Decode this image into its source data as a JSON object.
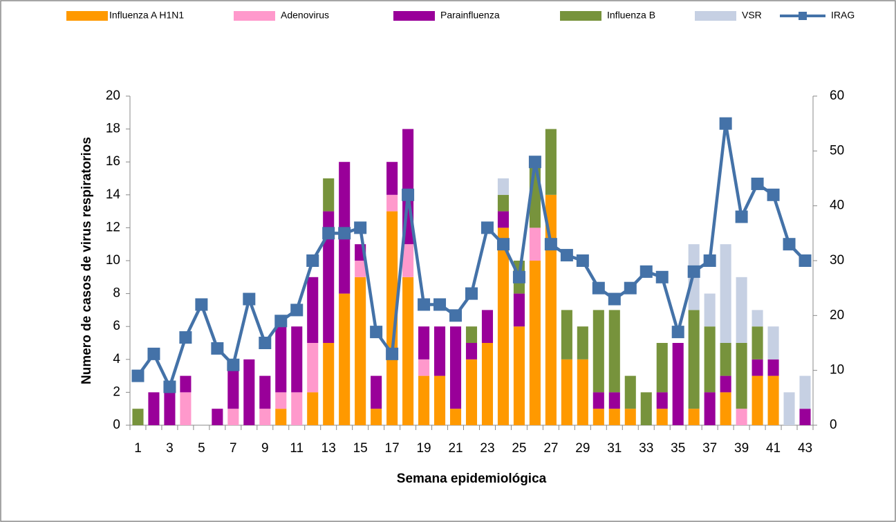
{
  "chart_data": {
    "type": "bar",
    "stacked": true,
    "x_label": "Semana epidemiológica",
    "y_label": "Numero de casos de virus respiratorios",
    "categories": [
      1,
      null,
      3,
      null,
      5,
      null,
      7,
      null,
      9,
      null,
      11,
      null,
      13,
      null,
      15,
      null,
      17,
      null,
      19,
      null,
      21,
      null,
      23,
      null,
      25,
      null,
      27,
      null,
      29,
      null,
      31,
      null,
      33,
      null,
      35,
      null,
      37,
      null,
      39,
      null,
      41,
      null,
      43
    ],
    "ylim": [
      0,
      20
    ],
    "yticks": [
      0,
      2,
      4,
      6,
      8,
      10,
      12,
      14,
      16,
      18,
      20
    ],
    "y2lim": [
      0,
      60
    ],
    "y2ticks": [
      0,
      10,
      20,
      30,
      40,
      50,
      60
    ],
    "legend": "top",
    "series": [
      {
        "name": "Influenza A H1N1",
        "color": "#ff9900",
        "values": [
          0,
          0,
          0,
          0,
          0,
          0,
          0,
          0,
          0,
          1,
          0,
          2,
          5,
          8,
          9,
          1,
          13,
          9,
          3,
          3,
          1,
          4,
          5,
          12,
          6,
          10,
          14,
          4,
          4,
          1,
          1,
          1,
          0,
          1,
          0,
          1,
          0,
          2,
          0,
          3,
          3,
          0,
          0
        ]
      },
      {
        "name": "Adenovirus",
        "color": "#ff99cc",
        "values": [
          0,
          0,
          0,
          2,
          0,
          0,
          1,
          0,
          1,
          1,
          2,
          3,
          0,
          0,
          1,
          0,
          1,
          2,
          1,
          0,
          0,
          0,
          0,
          0,
          0,
          2,
          0,
          0,
          0,
          0,
          0,
          0,
          0,
          0,
          0,
          0,
          0,
          0,
          1,
          0,
          0,
          0,
          0
        ]
      },
      {
        "name": "Parainfluenza",
        "color": "#990099",
        "values": [
          0,
          2,
          2,
          1,
          0,
          1,
          3,
          4,
          2,
          4,
          4,
          4,
          8,
          8,
          1,
          2,
          2,
          7,
          2,
          3,
          5,
          1,
          2,
          1,
          2,
          0,
          0,
          0,
          0,
          1,
          1,
          0,
          0,
          1,
          5,
          0,
          2,
          1,
          0,
          1,
          1,
          0,
          1
        ]
      },
      {
        "name": "Influenza B",
        "color": "#77933c",
        "values": [
          1,
          0,
          0,
          0,
          0,
          0,
          0,
          0,
          0,
          0,
          0,
          0,
          2,
          0,
          0,
          0,
          0,
          0,
          0,
          0,
          0,
          1,
          0,
          1,
          2,
          4,
          4,
          3,
          2,
          5,
          5,
          2,
          2,
          3,
          0,
          6,
          4,
          2,
          4,
          2,
          0,
          0,
          0
        ]
      },
      {
        "name": "VSR",
        "color": "#c6d0e3",
        "values": [
          0,
          0,
          0,
          0,
          0,
          0,
          0,
          0,
          0,
          0,
          0,
          0,
          0,
          0,
          0,
          0,
          0,
          0,
          0,
          0,
          0,
          0,
          0,
          1,
          0,
          0,
          0,
          0,
          0,
          0,
          0,
          0,
          0,
          0,
          0,
          4,
          2,
          6,
          4,
          1,
          2,
          2,
          2
        ]
      },
      {
        "name": "IRAG",
        "type": "line",
        "axis": "y2",
        "color": "#4472a8",
        "values": [
          9,
          13,
          7,
          16,
          22,
          14,
          11,
          23,
          15,
          19,
          21,
          30,
          35,
          35,
          36,
          17,
          13,
          42,
          22,
          22,
          20,
          24,
          36,
          33,
          27,
          48,
          33,
          31,
          30,
          25,
          23,
          25,
          28,
          27,
          17,
          28,
          30,
          55,
          38,
          44,
          42,
          33,
          30
        ]
      }
    ]
  }
}
